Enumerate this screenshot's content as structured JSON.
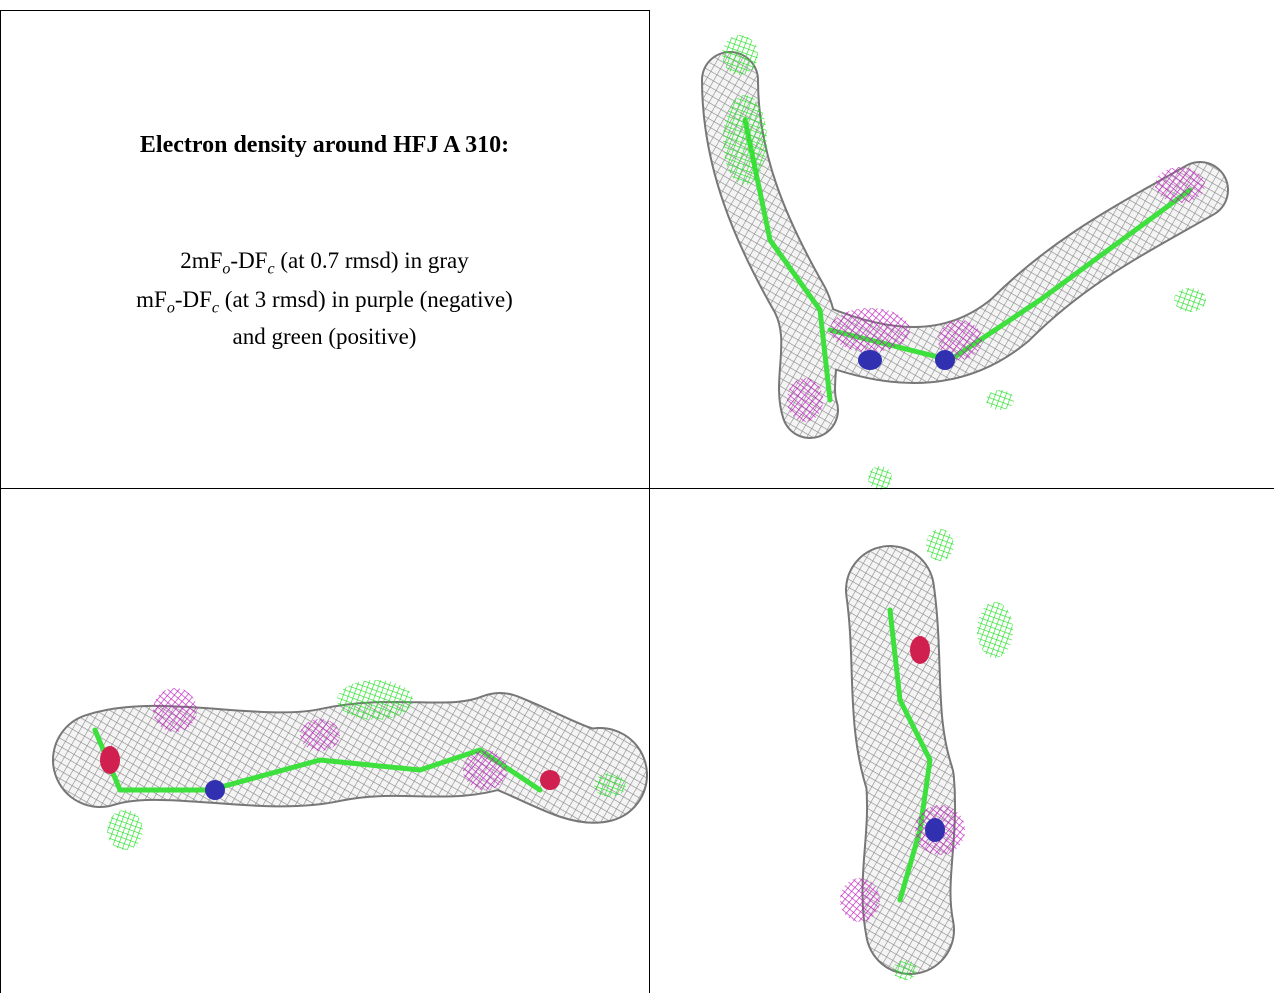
{
  "caption": {
    "title": "Electron density around HFJ A 310:",
    "lines": [
      [
        {
          "text": "2mF"
        },
        {
          "text": "o",
          "sub": true
        },
        {
          "text": "-DF"
        },
        {
          "text": "c",
          "sub": true
        },
        {
          "text": " (at 0.7 rmsd) in gray"
        }
      ],
      [
        {
          "text": "mF"
        },
        {
          "text": "o",
          "sub": true
        },
        {
          "text": "-DF"
        },
        {
          "text": "c",
          "sub": true
        },
        {
          "text": " (at 3 rmsd) in purple (negative)"
        }
      ],
      [
        {
          "text": "and green (positive)"
        }
      ]
    ]
  }
}
